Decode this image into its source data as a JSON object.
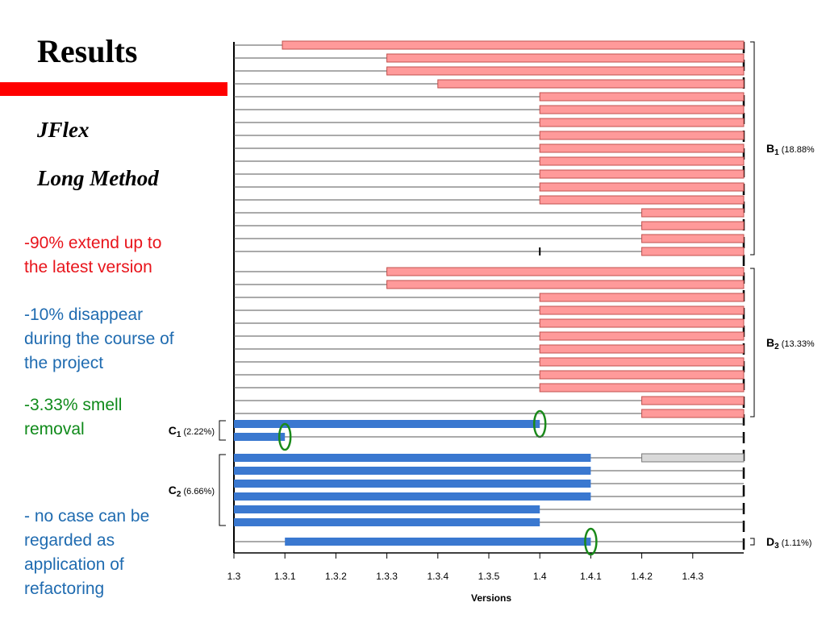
{
  "slide": {
    "title": "Results",
    "subtitle1": "JFlex",
    "subtitle2": "Long Method",
    "accent_color": "#ff0000"
  },
  "notes": [
    {
      "line1": "-90% extend up to",
      "line2": "the latest version",
      "line3": "",
      "color": "#e8141b"
    },
    {
      "line1": "-10% disappear",
      "line2": "during the course of",
      "line3": "the project",
      "color": "#1f6bb0"
    },
    {
      "line1": "-3.33% smell",
      "line2": "removal",
      "line3": "",
      "color": "#0f8a1a"
    },
    {
      "line1": "- no case can be",
      "line2": "regarded as",
      "line3": "application of",
      "line4": "refactoring",
      "color": "#1f6bb0"
    }
  ],
  "chart_data": {
    "type": "gantt",
    "xlabel": "Versions",
    "x_categories": [
      "1.3",
      "1.3.1",
      "1.3.2",
      "1.3.3",
      "1.3.4",
      "1.3.5",
      "1.4",
      "1.4.1",
      "1.4.2",
      "1.4.3"
    ],
    "colors": {
      "red": "#ff9a9a",
      "red_border": "#c0504d",
      "blue": "#3a78d0",
      "gray": "#d9d9d9",
      "green_circle": "#1a8a1a"
    },
    "groups": [
      {
        "label": "B",
        "sub": "1",
        "pct": "(18.88%",
        "bracket_side": "right",
        "rows": [
          {
            "start": 0.95,
            "end": 10,
            "color": "red"
          },
          {
            "start": 3,
            "end": 10,
            "color": "red"
          },
          {
            "start": 3,
            "end": 10,
            "color": "red"
          },
          {
            "start": 4,
            "end": 10,
            "color": "red"
          },
          {
            "start": 6,
            "end": 10,
            "color": "red"
          },
          {
            "start": 6,
            "end": 10,
            "color": "red"
          },
          {
            "start": 6,
            "end": 10,
            "color": "red"
          },
          {
            "start": 6,
            "end": 10,
            "color": "red"
          },
          {
            "start": 6,
            "end": 10,
            "color": "red"
          },
          {
            "start": 6,
            "end": 10,
            "color": "red"
          },
          {
            "start": 6,
            "end": 10,
            "color": "red"
          },
          {
            "start": 6,
            "end": 10,
            "color": "red"
          },
          {
            "start": 6,
            "end": 10,
            "color": "red"
          },
          {
            "start": 8,
            "end": 10,
            "color": "red"
          },
          {
            "start": 8,
            "end": 10,
            "color": "red"
          },
          {
            "start": 8,
            "end": 10,
            "color": "red"
          },
          {
            "start": 8,
            "end": 10,
            "color": "red",
            "tick_at": 6
          }
        ]
      },
      {
        "label": "B",
        "sub": "2",
        "pct": "(13.33%",
        "bracket_side": "right",
        "rows": [
          {
            "start": 3,
            "end": 10,
            "color": "red"
          },
          {
            "start": 3,
            "end": 10,
            "color": "red"
          },
          {
            "start": 6,
            "end": 10,
            "color": "red"
          },
          {
            "start": 6,
            "end": 10,
            "color": "red"
          },
          {
            "start": 6,
            "end": 10,
            "color": "red"
          },
          {
            "start": 6,
            "end": 10,
            "color": "red"
          },
          {
            "start": 6,
            "end": 10,
            "color": "red"
          },
          {
            "start": 6,
            "end": 10,
            "color": "red"
          },
          {
            "start": 6,
            "end": 10,
            "color": "red"
          },
          {
            "start": 6,
            "end": 10,
            "color": "red"
          },
          {
            "start": 8,
            "end": 10,
            "color": "red"
          },
          {
            "start": 8,
            "end": 10,
            "color": "red"
          }
        ]
      },
      {
        "label": "C",
        "sub": "1",
        "pct": "(2.22%)",
        "bracket_side": "left",
        "rows": [
          {
            "start": 0,
            "end": 6,
            "color": "blue",
            "circle_at": 6
          },
          {
            "start": 0,
            "end": 1,
            "color": "blue",
            "circle_at": 1
          }
        ]
      },
      {
        "label": "C",
        "sub": "2",
        "pct": "(6.66%)",
        "bracket_side": "left",
        "rows": [
          {
            "start": 0,
            "end": 7,
            "color": "blue",
            "gray_start": 8,
            "gray_end": 10
          },
          {
            "start": 0,
            "end": 7,
            "color": "blue"
          },
          {
            "start": 0,
            "end": 7,
            "color": "blue"
          },
          {
            "start": 0,
            "end": 7,
            "color": "blue"
          },
          {
            "start": 0,
            "end": 6,
            "color": "blue"
          },
          {
            "start": 0,
            "end": 6,
            "color": "blue"
          }
        ]
      },
      {
        "label": "D",
        "sub": "3",
        "pct": "(1.11%)",
        "bracket_side": "right",
        "rows": [
          {
            "start": 1,
            "end": 7,
            "color": "blue",
            "circle_at": 7
          }
        ]
      }
    ]
  }
}
